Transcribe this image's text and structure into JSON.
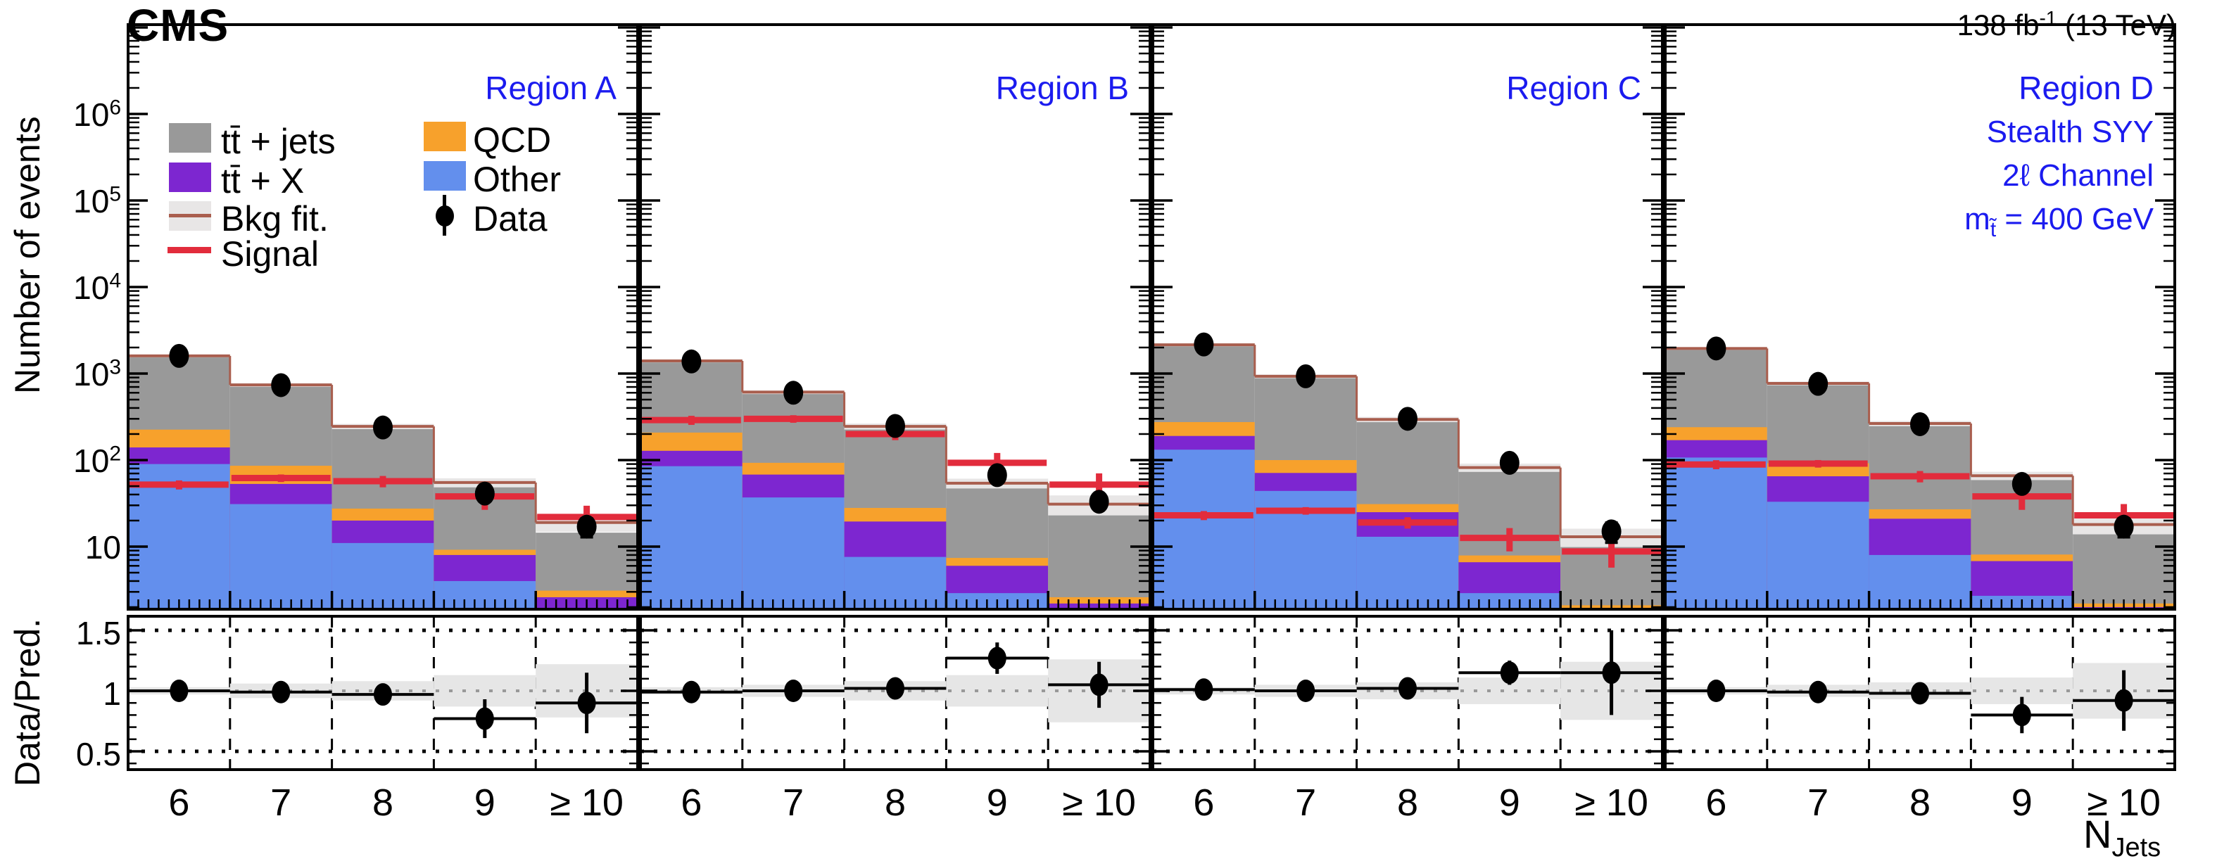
{
  "header": {
    "cms": "CMS",
    "lumi_value": "138 fb",
    "lumi_exp": "-1",
    "lumi_energy": " (13 TeV)"
  },
  "legend": {
    "col1": [
      {
        "label": "tt̄ + jets",
        "swatch": "gray-box"
      },
      {
        "label": "tt̄ + X",
        "swatch": "purple-box"
      },
      {
        "label": "Bkg fit.",
        "swatch": "gray-band-with-line"
      },
      {
        "label": "Signal",
        "swatch": "red-line"
      }
    ],
    "col2": [
      {
        "label": "QCD",
        "swatch": "orange-box"
      },
      {
        "label": "Other",
        "swatch": "blue-box"
      },
      {
        "label": "Data",
        "swatch": "black-marker"
      }
    ]
  },
  "chart_data": {
    "type": "bar",
    "subtype": "stacked-log-histogram-with-ratio-panels",
    "title": "CMS 138 fb-1 (13 TeV), stealth SUSY background fit, 2l channel",
    "x_axis": {
      "label_main": "N",
      "label_sub": "Jets"
    },
    "x_values": [
      6,
      7,
      8,
      9,
      10
    ],
    "x_tick_labels": [
      "6",
      "7",
      "8",
      "9",
      "≥ 10"
    ],
    "y_axis": {
      "label": "Number of events",
      "scale": "log",
      "min": 1.9,
      "max": 10700000,
      "ticks": [
        {
          "v": 10,
          "base": "10",
          "exp": ""
        },
        {
          "v": 100,
          "base": "10",
          "exp": "2"
        },
        {
          "v": 1000,
          "base": "10",
          "exp": "3"
        },
        {
          "v": 10000,
          "base": "10",
          "exp": "4"
        },
        {
          "v": 100000,
          "base": "10",
          "exp": "5"
        },
        {
          "v": 1000000,
          "base": "10",
          "exp": "6"
        }
      ]
    },
    "ratio_axis": {
      "label": "Data/Pred.",
      "min": 0.35,
      "max": 1.6,
      "ticks": [
        {
          "v": 0.5,
          "text": "0.5"
        },
        {
          "v": 1,
          "text": "1"
        },
        {
          "v": 1.5,
          "text": "1.5"
        }
      ]
    },
    "grid": {
      "main": "off",
      "ratio": "dashed vertical at bin edges, dotted horizontal at 0.5/1.0/1.5"
    },
    "legend_position": "top-left inside first panel",
    "series_order_bottom_to_top": [
      "Other",
      "tt̄ + X",
      "QCD",
      "tt̄ + jets"
    ],
    "signal_err_frac": [
      0.12,
      0.1,
      0.15,
      0.3,
      0.35
    ],
    "colors": {
      "ttjets_gray": "#999999",
      "ttx_purple": "#7d26d0",
      "qcd_orange": "#f7a12c",
      "other_blue": "#638fed",
      "signal_red": "#e22c3c",
      "fit_line_brown": "#a95e4e",
      "fit_band_gray": "#e8e6e6",
      "ratio_band_gray": "#e6e6e6",
      "region_label_blue": "#1b1bef",
      "data_black": "#000000"
    },
    "regions": [
      {
        "name": "Region A",
        "annotations": [],
        "other_top": [
          90,
          31,
          11,
          4,
          1.5
        ],
        "ttx_top": [
          140,
          53,
          20,
          8,
          2.6
        ],
        "qcd_top": [
          225,
          86,
          27.5,
          9.2,
          3.1
        ],
        "total": [
          1600,
          740,
          245,
          53,
          14.5
        ],
        "fit": [
          1600,
          740,
          245,
          55,
          19
        ],
        "band_frac": [
          0.04,
          0.05,
          0.07,
          0.12,
          0.22
        ],
        "signal": [
          52,
          62,
          57,
          38,
          22
        ],
        "data": [
          1600,
          735,
          238,
          41,
          17
        ],
        "ratio": [
          1.0,
          0.99,
          0.97,
          0.77,
          0.9
        ],
        "ratio_err": [
          0.03,
          0.04,
          0.06,
          0.16,
          0.25
        ],
        "ratio_band": [
          0.03,
          0.06,
          0.08,
          0.13,
          0.22
        ]
      },
      {
        "name": "Region B",
        "annotations": [],
        "other_top": [
          85,
          37,
          7.6,
          2.9,
          1.3
        ],
        "ttx_top": [
          128,
          68,
          19.5,
          6.0,
          2.2
        ],
        "qcd_top": [
          208,
          93,
          28,
          7.4,
          2.6
        ],
        "total": [
          1400,
          610,
          245,
          53,
          30
        ],
        "fit": [
          1400,
          610,
          245,
          54,
          31
        ],
        "band_frac": [
          0.04,
          0.05,
          0.08,
          0.13,
          0.26
        ],
        "signal": [
          290,
          300,
          200,
          93,
          52
        ],
        "data": [
          1380,
          600,
          248,
          67,
          33
        ],
        "ratio": [
          0.99,
          1.0,
          1.02,
          1.27,
          1.05
        ],
        "ratio_err": [
          0.03,
          0.04,
          0.06,
          0.13,
          0.19
        ],
        "ratio_band": [
          0.03,
          0.05,
          0.08,
          0.13,
          0.26
        ]
      },
      {
        "name": "Region C",
        "annotations": [],
        "other_top": [
          132,
          44,
          13,
          2.9,
          0.9
        ],
        "ttx_top": [
          190,
          71,
          25,
          6.6,
          1.8
        ],
        "qcd_top": [
          275,
          100,
          31,
          7.9,
          2.1
        ],
        "total": [
          2150,
          930,
          295,
          81,
          10.5
        ],
        "fit": [
          2150,
          930,
          295,
          82,
          13
        ],
        "band_frac": [
          0.04,
          0.05,
          0.07,
          0.11,
          0.24
        ],
        "signal": [
          23,
          26,
          19,
          12.6,
          8.8
        ],
        "data": [
          2170,
          930,
          300,
          93,
          15
        ],
        "ratio": [
          1.01,
          1.0,
          1.02,
          1.15,
          1.15
        ],
        "ratio_err": [
          0.02,
          0.03,
          0.06,
          0.1,
          0.35
        ],
        "ratio_band": [
          0.03,
          0.05,
          0.07,
          0.11,
          0.24
        ]
      },
      {
        "name": "Region D",
        "annotations": [
          "Stealth SYY",
          "2ℓ Channel"
        ],
        "mass": {
          "pre": "m",
          "sub": "t̃",
          "post": " = 400 GeV"
        },
        "other_top": [
          107,
          33,
          8,
          2.7,
          1.1
        ],
        "ttx_top": [
          170,
          65,
          21,
          6.8,
          2.0
        ],
        "qcd_top": [
          240,
          92,
          27,
          8.1,
          2.2
        ],
        "total": [
          1950,
          770,
          265,
          63,
          14
        ],
        "fit": [
          1950,
          770,
          265,
          66,
          18
        ],
        "band_frac": [
          0.04,
          0.05,
          0.07,
          0.11,
          0.23
        ],
        "signal": [
          89,
          91,
          65,
          38,
          23
        ],
        "data": [
          1950,
          760,
          260,
          53,
          17
        ],
        "ratio": [
          1.0,
          0.99,
          0.98,
          0.8,
          0.92
        ],
        "ratio_err": [
          0.03,
          0.04,
          0.06,
          0.15,
          0.25
        ],
        "ratio_band": [
          0.03,
          0.05,
          0.07,
          0.11,
          0.23
        ]
      }
    ]
  }
}
